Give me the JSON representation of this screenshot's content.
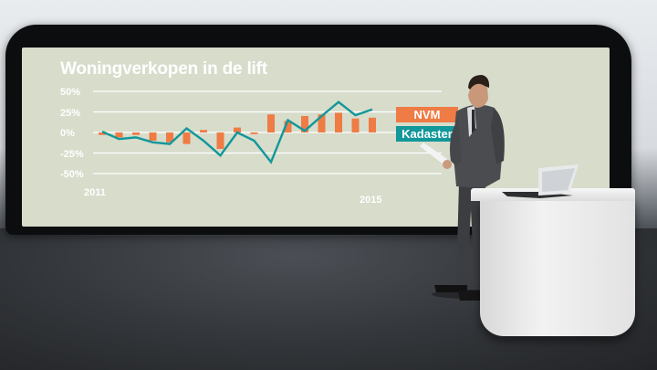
{
  "chart_data": {
    "type": "bar",
    "title": "Woningverkopen in de lift",
    "yticks": [
      "50%",
      "25%",
      "0%",
      "-25%",
      "-50%"
    ],
    "ylim": [
      -50,
      50
    ],
    "xtick_labels": [
      "2011",
      "2015"
    ],
    "grid": true,
    "legend_placement": "right",
    "series": [
      {
        "name": "NVM",
        "mark": "bar",
        "color": "#ef7b45",
        "values": [
          -3,
          -6,
          -3,
          -10,
          -12,
          -14,
          3,
          -20,
          6,
          -2,
          22,
          14,
          20,
          22,
          24,
          17,
          18
        ]
      },
      {
        "name": "Kadaster",
        "mark": "line",
        "color": "#12979a",
        "values": [
          1,
          -8,
          -6,
          -12,
          -14,
          5,
          -10,
          -28,
          0,
          -10,
          -36,
          15,
          2,
          20,
          37,
          21,
          28
        ]
      }
    ]
  }
}
